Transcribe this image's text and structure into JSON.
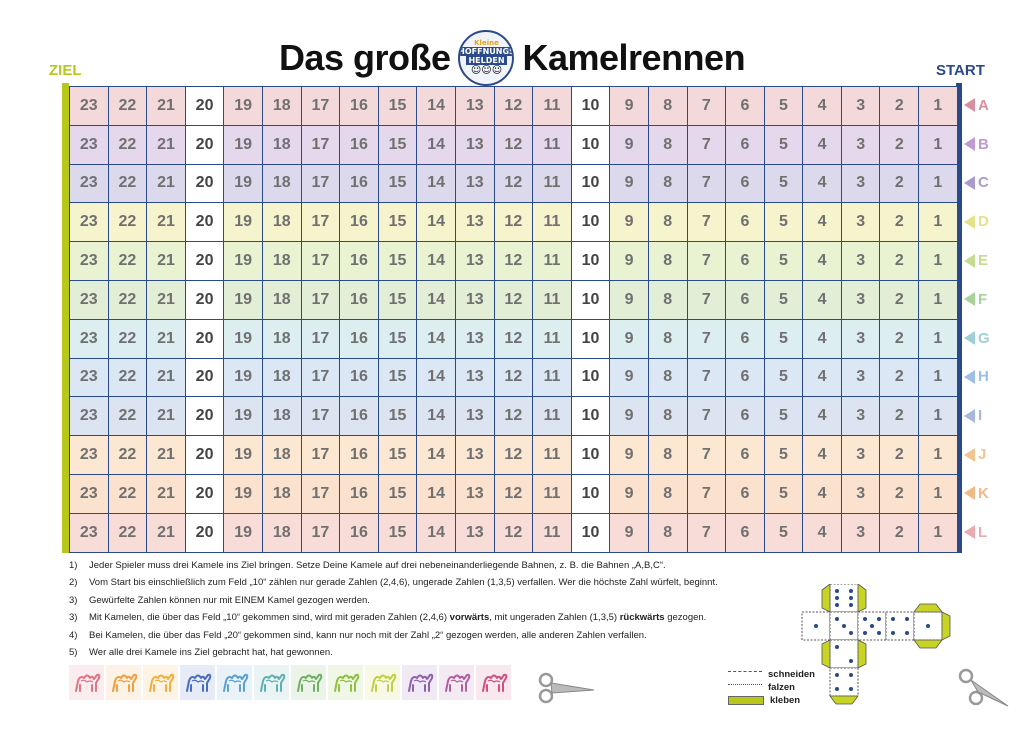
{
  "title": {
    "left": "Das große",
    "right": "Kamelrennen"
  },
  "logo": {
    "line1": "Kleine",
    "line2": "HOFFNUNGS",
    "line3": "HELDEN"
  },
  "ziel_label": "ZIEL",
  "start_label": "START",
  "board": {
    "numbers": [
      23,
      22,
      21,
      20,
      19,
      18,
      17,
      16,
      15,
      14,
      13,
      12,
      11,
      10,
      9,
      8,
      7,
      6,
      5,
      4,
      3,
      2,
      1
    ],
    "white_numbers": [
      20,
      10
    ],
    "lanes": [
      {
        "letter": "A",
        "color": "#f4d9da",
        "accent": "#d88fa0"
      },
      {
        "letter": "B",
        "color": "#e6d8ec",
        "accent": "#c09ad0"
      },
      {
        "letter": "C",
        "color": "#ddd9ec",
        "accent": "#a99bcc"
      },
      {
        "letter": "D",
        "color": "#f6f4cc",
        "accent": "#e3e38a"
      },
      {
        "letter": "E",
        "color": "#e9f2d1",
        "accent": "#c6dc90"
      },
      {
        "letter": "F",
        "color": "#e2efd6",
        "accent": "#a8d29a"
      },
      {
        "letter": "G",
        "color": "#ddeef0",
        "accent": "#9fd0d6"
      },
      {
        "letter": "H",
        "color": "#dbe7f5",
        "accent": "#9ec0e6"
      },
      {
        "letter": "I",
        "color": "#dde4f1",
        "accent": "#a7b8dc"
      },
      {
        "letter": "J",
        "color": "#fbe7d2",
        "accent": "#f1c490"
      },
      {
        "letter": "K",
        "color": "#fbe2cf",
        "accent": "#f0b987"
      },
      {
        "letter": "L",
        "color": "#f7dcd8",
        "accent": "#e9aab0"
      }
    ]
  },
  "rules": [
    {
      "n": "1)",
      "text": "Jeder Spieler muss drei Kamele ins Ziel bringen. Setze Deine Kamele auf drei nebeneinanderliegende Bahnen, z. B. die Bahnen „A,B,C“."
    },
    {
      "n": "2)",
      "text": "Vom Start bis einschließlich zum Feld „10“ zählen nur gerade Zahlen (2,4,6), ungerade Zahlen (1,3,5) verfallen. Wer die höchste Zahl würfelt, beginnt."
    },
    {
      "n": "3)",
      "text": "Gewürfelte Zahlen können nur mit EINEM Kamel gezogen werden."
    },
    {
      "n": "3)",
      "text_a": "Mit Kamelen, die über das Feld „10“ gekommen sind, wird mit geraden Zahlen (2,4,6) ",
      "bold_a": "vorwärts",
      "text_b": ", mit ungeraden Zahlen (1,3,5) ",
      "bold_b": "rückwärts",
      "text_c": " gezogen."
    },
    {
      "n": "4)",
      "text": "Bei Kamelen, die über das Feld „20“ gekommen sind, kann nur noch mit der Zahl „2“ gezogen werden, alle anderen Zahlen verfallen."
    },
    {
      "n": "5)",
      "text": "Wer alle drei Kamele ins Ziel gebracht hat, hat gewonnen."
    }
  ],
  "camel_tokens": [
    "#e07585",
    "#f0a040",
    "#f0b040",
    "#4a6cc0",
    "#5aa0d0",
    "#60b0b0",
    "#70b060",
    "#90c040",
    "#c0d040",
    "#9060b0",
    "#b060a0",
    "#d05080"
  ],
  "legend": [
    {
      "label": "schneiden",
      "color": "#ffffff",
      "style": "dashed"
    },
    {
      "label": "falzen",
      "color": "#ffffff",
      "style": "dotted"
    },
    {
      "label": "kleben",
      "color": "#b7c81a",
      "style": "solid"
    }
  ]
}
